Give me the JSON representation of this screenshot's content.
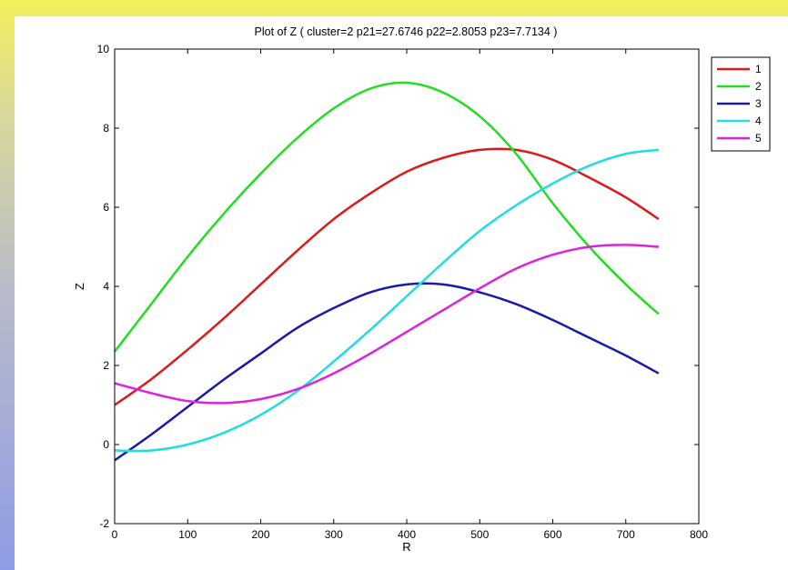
{
  "chart_data": {
    "type": "line",
    "title": "Plot of Z ( cluster=2 p21=27.6746 p22=2.8053 p23=7.7134 )",
    "xlabel": "R",
    "ylabel": "Z",
    "xlim": [
      0,
      800
    ],
    "ylim": [
      -2,
      10
    ],
    "xticks": [
      0,
      100,
      200,
      300,
      400,
      500,
      600,
      700,
      800
    ],
    "yticks": [
      -2,
      0,
      2,
      4,
      6,
      8,
      10
    ],
    "grid": false,
    "legend_position": "top-right",
    "series": [
      {
        "name": "1",
        "color": "#dd1a1a",
        "x": [
          0,
          50,
          100,
          150,
          200,
          250,
          300,
          350,
          400,
          450,
          500,
          550,
          600,
          650,
          700,
          745
        ],
        "values": [
          1.0,
          1.65,
          2.4,
          3.2,
          4.05,
          4.9,
          5.7,
          6.35,
          6.9,
          7.25,
          7.45,
          7.45,
          7.2,
          6.75,
          6.25,
          5.7
        ]
      },
      {
        "name": "2",
        "color": "#22dd22",
        "x": [
          0,
          50,
          100,
          150,
          200,
          250,
          300,
          350,
          400,
          450,
          500,
          550,
          600,
          650,
          700,
          745
        ],
        "values": [
          2.35,
          3.55,
          4.75,
          5.85,
          6.85,
          7.75,
          8.5,
          9.0,
          9.15,
          8.9,
          8.3,
          7.35,
          6.1,
          5.0,
          4.05,
          3.3
        ]
      },
      {
        "name": "3",
        "color": "#1a1aaa",
        "x": [
          0,
          50,
          100,
          150,
          200,
          250,
          300,
          350,
          400,
          450,
          500,
          550,
          600,
          650,
          700,
          745
        ],
        "values": [
          -0.4,
          0.25,
          0.95,
          1.65,
          2.3,
          2.95,
          3.45,
          3.85,
          4.05,
          4.05,
          3.85,
          3.55,
          3.15,
          2.7,
          2.25,
          1.8
        ]
      },
      {
        "name": "4",
        "color": "#22dddd",
        "x": [
          0,
          50,
          100,
          150,
          200,
          250,
          300,
          350,
          400,
          450,
          500,
          550,
          600,
          650,
          700,
          745
        ],
        "values": [
          -0.15,
          -0.15,
          0.0,
          0.3,
          0.75,
          1.35,
          2.1,
          2.9,
          3.75,
          4.6,
          5.4,
          6.05,
          6.6,
          7.05,
          7.35,
          7.45
        ]
      },
      {
        "name": "5",
        "color": "#dd22dd",
        "x": [
          0,
          50,
          100,
          150,
          200,
          250,
          300,
          350,
          400,
          450,
          500,
          550,
          600,
          650,
          700,
          745
        ],
        "values": [
          1.55,
          1.3,
          1.1,
          1.05,
          1.15,
          1.4,
          1.8,
          2.3,
          2.85,
          3.4,
          3.95,
          4.45,
          4.8,
          5.0,
          5.05,
          5.0
        ]
      }
    ]
  }
}
